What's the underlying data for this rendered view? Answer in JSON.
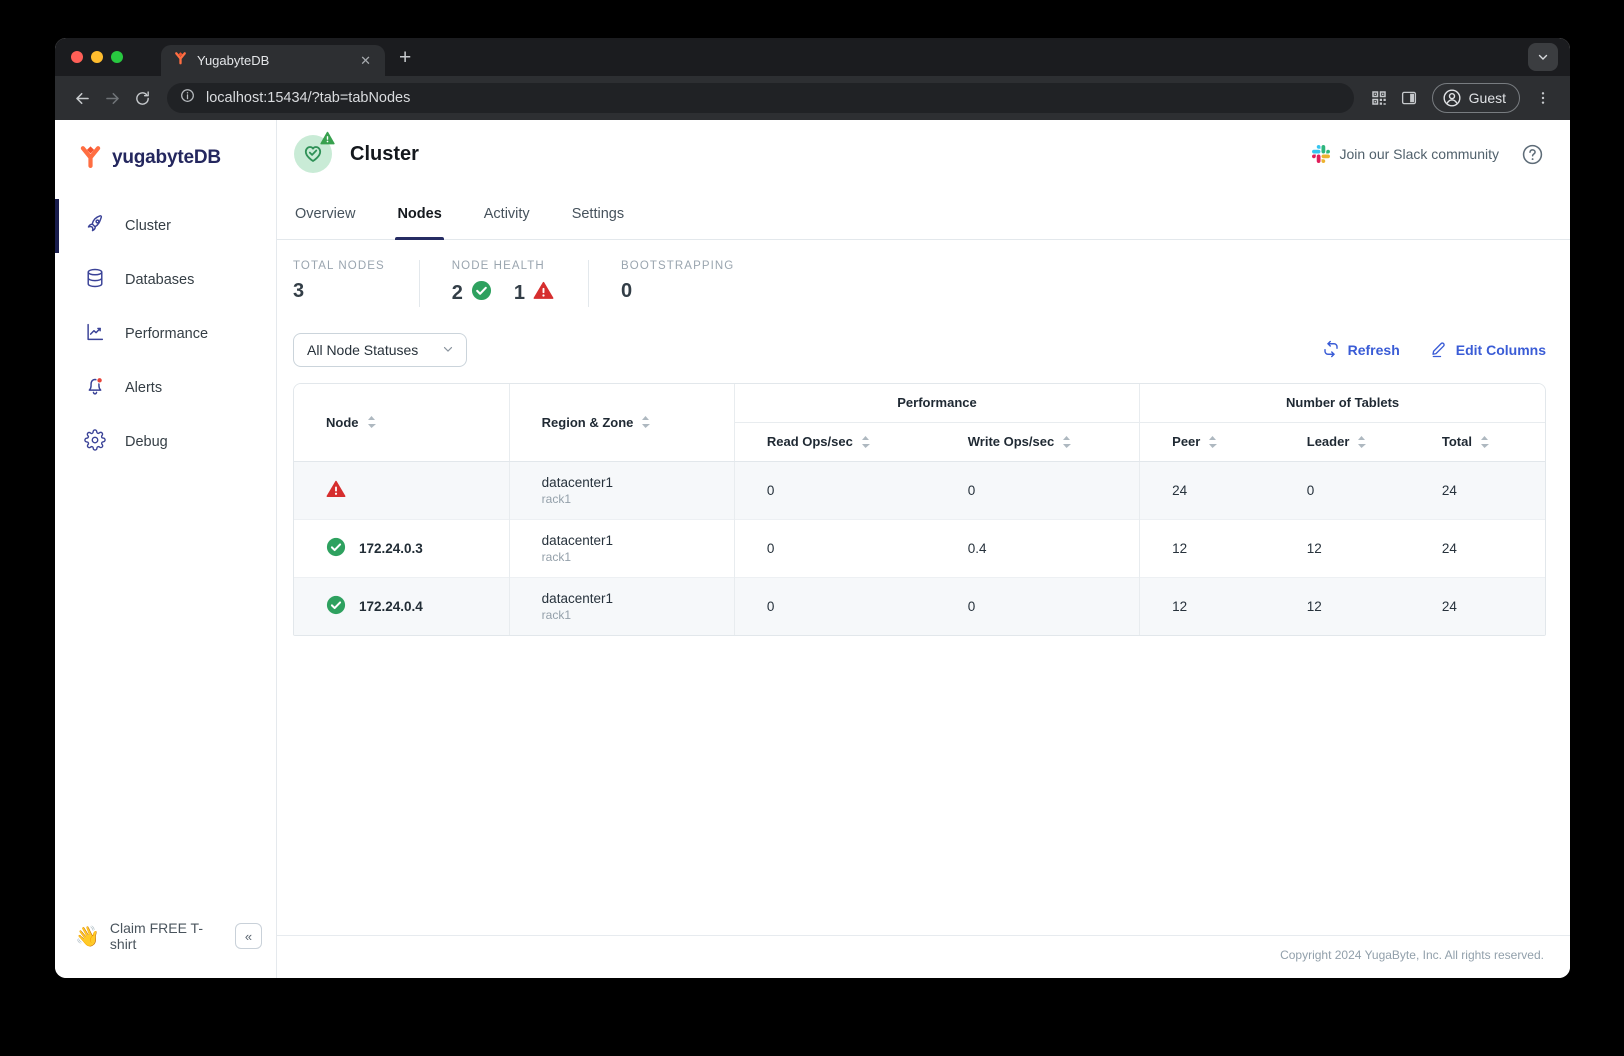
{
  "colors": {
    "accent_blue": "#3a5cd6",
    "brand_navy": "#24275e",
    "healthy_green": "#2ea15f",
    "warning_red": "#d62e2e",
    "active_nav_indicator": "#191d4d"
  },
  "browser": {
    "tab_title": "YugabyteDB",
    "url": "localhost:15434/?tab=tabNodes",
    "guest_label": "Guest",
    "close_glyph": "✕",
    "new_tab_glyph": "+"
  },
  "sidebar": {
    "brand": "yugabyteDB",
    "items": [
      {
        "label": "Cluster",
        "active": true
      },
      {
        "label": "Databases",
        "active": false
      },
      {
        "label": "Performance",
        "active": false
      },
      {
        "label": "Alerts",
        "active": false,
        "has_badge": true
      },
      {
        "label": "Debug",
        "active": false
      }
    ],
    "claim": {
      "emoji": "👋",
      "label": "Claim FREE T-shirt",
      "collapse_glyph": "«"
    }
  },
  "header": {
    "title": "Cluster",
    "slack_link_label": "Join our Slack community"
  },
  "tabs": [
    {
      "label": "Overview",
      "active": false
    },
    {
      "label": "Nodes",
      "active": true
    },
    {
      "label": "Activity",
      "active": false
    },
    {
      "label": "Settings",
      "active": false
    }
  ],
  "stats": {
    "total_nodes_label": "TOTAL NODES",
    "total_nodes_value": "3",
    "node_health_label": "NODE HEALTH",
    "healthy_count": "2",
    "warning_count": "1",
    "bootstrapping_label": "BOOTSTRAPPING",
    "bootstrapping_value": "0"
  },
  "controls": {
    "status_filter_value": "All Node Statuses",
    "refresh_label": "Refresh",
    "edit_columns_label": "Edit Columns"
  },
  "table": {
    "group_performance": "Performance",
    "group_tablets": "Number of Tablets",
    "col_node": "Node",
    "col_region": "Region & Zone",
    "col_read": "Read Ops/sec",
    "col_write": "Write Ops/sec",
    "col_peer": "Peer",
    "col_leader": "Leader",
    "col_total": "Total",
    "rows": [
      {
        "status": "warning",
        "node": "",
        "region": "datacenter1",
        "zone": "rack1",
        "read_ops": "0",
        "write_ops": "0",
        "peer": "24",
        "leader": "0",
        "total": "24"
      },
      {
        "status": "healthy",
        "node": "172.24.0.3",
        "region": "datacenter1",
        "zone": "rack1",
        "read_ops": "0",
        "write_ops": "0.4",
        "peer": "12",
        "leader": "12",
        "total": "24"
      },
      {
        "status": "healthy",
        "node": "172.24.0.4",
        "region": "datacenter1",
        "zone": "rack1",
        "read_ops": "0",
        "write_ops": "0",
        "peer": "12",
        "leader": "12",
        "total": "24"
      }
    ]
  },
  "footer": {
    "copyright": "Copyright 2024 YugaByte, Inc. All rights reserved."
  }
}
